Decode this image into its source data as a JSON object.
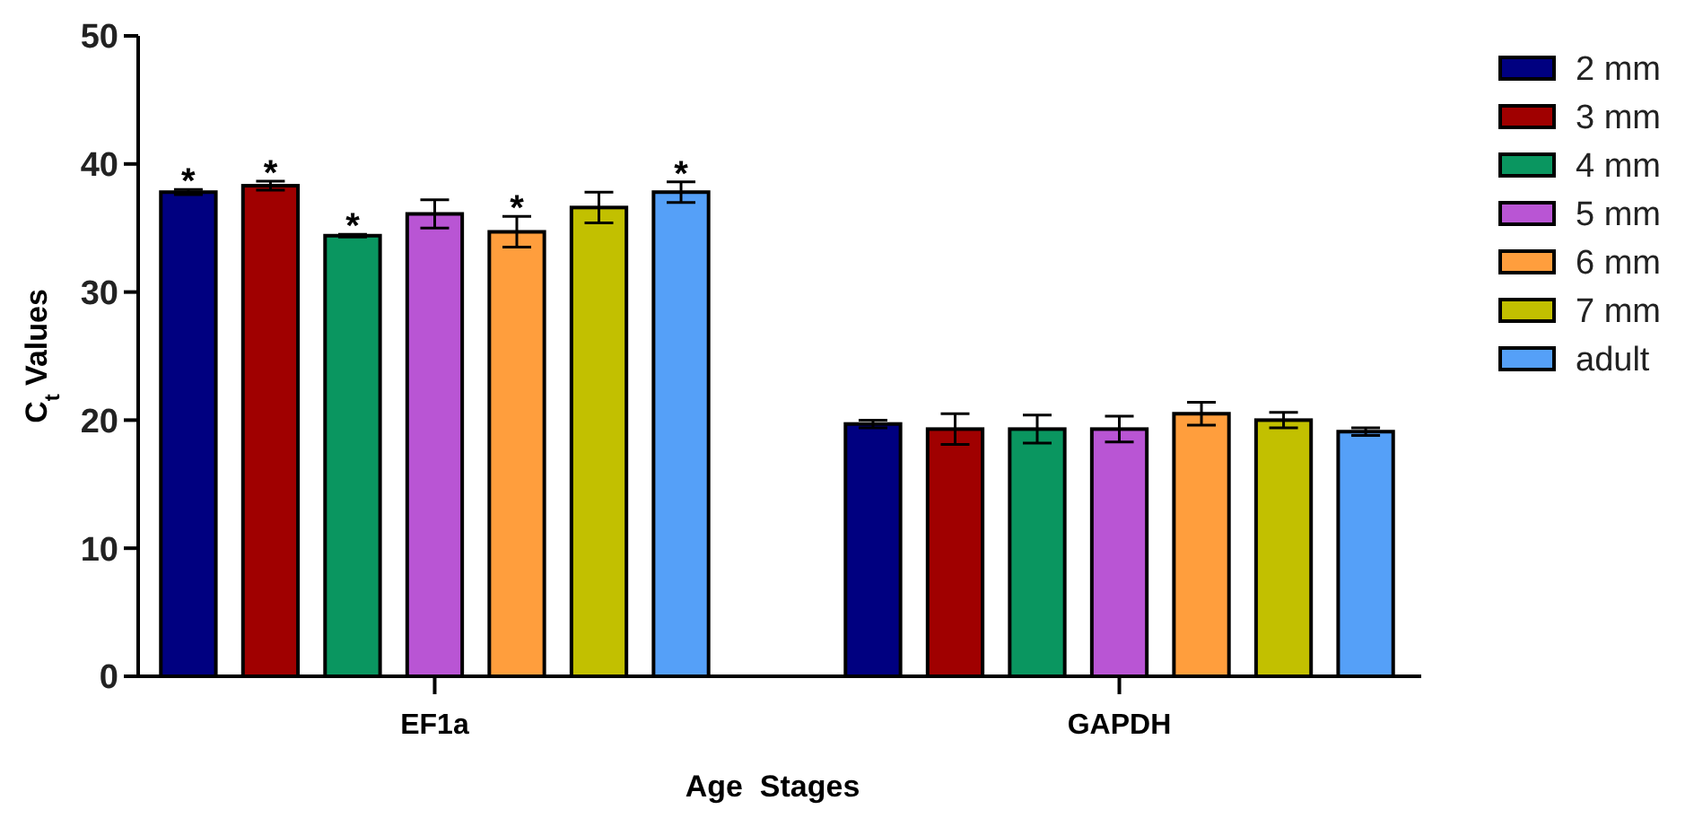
{
  "chart_data": {
    "type": "bar",
    "xlabel": "Age  Stages",
    "ylabel": "C$_{t}$ Values",
    "categories": [
      "EF1a",
      "GAPDH"
    ],
    "ylim": [
      0,
      50
    ],
    "yticks": [
      0,
      10,
      20,
      30,
      40,
      50
    ],
    "legend": "right",
    "grid": false,
    "series": [
      {
        "name": "2 mm",
        "color": "#000080",
        "values": [
          37.8,
          19.7
        ],
        "errors": [
          0.2,
          0.3
        ],
        "value_labels": [
          "*",
          null
        ]
      },
      {
        "name": "3 mm",
        "color": "#a00000",
        "values": [
          38.3,
          19.3
        ],
        "errors": [
          0.35,
          1.2
        ],
        "value_labels": [
          "*",
          null
        ]
      },
      {
        "name": "4 mm",
        "color": "#0a9660",
        "values": [
          34.4,
          19.3
        ],
        "errors": [
          0.1,
          1.1
        ],
        "value_labels": [
          "*",
          null
        ]
      },
      {
        "name": "5 mm",
        "color": "#b955d4",
        "values": [
          36.1,
          19.3
        ],
        "errors": [
          1.1,
          1.0
        ],
        "value_labels": [
          null,
          null
        ]
      },
      {
        "name": "6 mm",
        "color": "#ff9e3d",
        "values": [
          34.7,
          20.5
        ],
        "errors": [
          1.2,
          0.9
        ],
        "value_labels": [
          "*",
          null
        ]
      },
      {
        "name": "7 mm",
        "color": "#c2c000",
        "values": [
          36.6,
          20.0
        ],
        "errors": [
          1.2,
          0.6
        ],
        "value_labels": [
          null,
          null
        ]
      },
      {
        "name": "adult",
        "color": "#55a0f8",
        "values": [
          37.8,
          19.1
        ],
        "errors": [
          0.8,
          0.3
        ],
        "value_labels": [
          "*",
          null
        ]
      }
    ]
  }
}
